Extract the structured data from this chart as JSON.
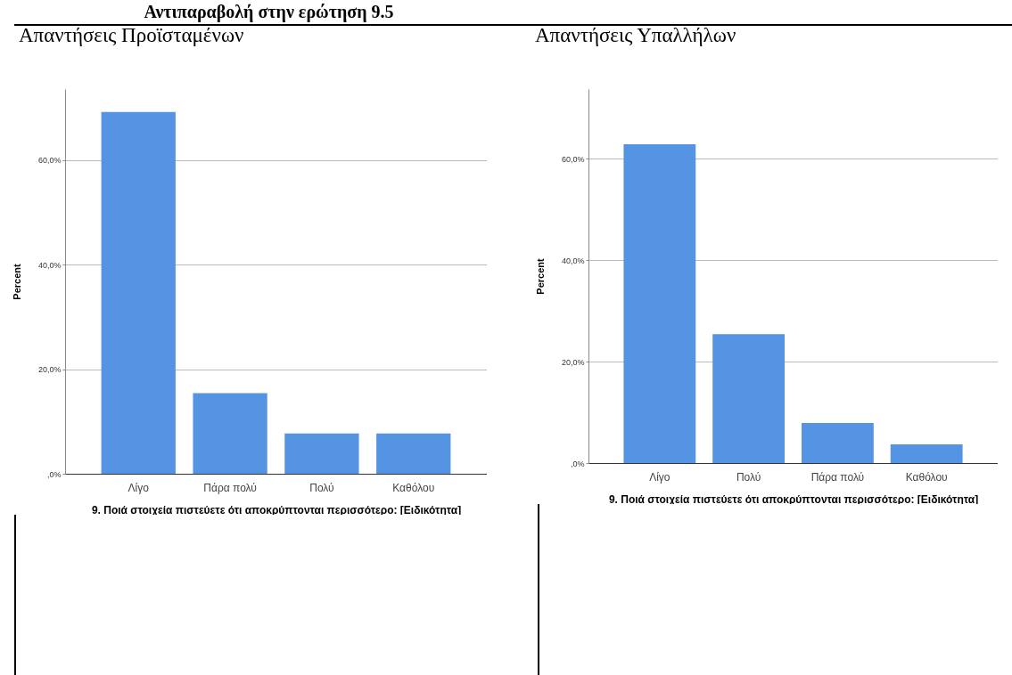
{
  "chart_data": [
    {
      "type": "bar",
      "title": "Απαντήσεις Προϊσταμένων",
      "annotations": [
        "Αντιπαραβολή στην ερώτηση 9.5"
      ],
      "xlabel": "9. Ποιά στοιχεία πιστεύετε ότι αποκρύπτονται περισσότερο: [Ειδικότητα]",
      "ylabel": "Percent",
      "categories": [
        "Λίγο",
        "Πάρα πολύ",
        "Πολύ",
        "Καθόλου"
      ],
      "values": [
        69.2,
        15.4,
        7.7,
        7.7
      ],
      "color": "#5594e2",
      "ylim": [
        0,
        73.6
      ],
      "yticks": [
        {
          "value": 0,
          "label": ",0%"
        },
        {
          "value": 20,
          "label": "20,0%"
        },
        {
          "value": 40,
          "label": "40,0%"
        },
        {
          "value": 60,
          "label": "60,0%"
        }
      ],
      "grid": "y"
    },
    {
      "type": "bar",
      "title": "Απαντήσεις Υπαλλήλων",
      "xlabel": "9. Ποιά στοιχεία πιστεύετε ότι αποκρύπτονται περισσότερο: [Ειδικότητα]",
      "ylabel": "Percent",
      "categories": [
        "Λίγο",
        "Πολύ",
        "Πάρα πολύ",
        "Καθόλου"
      ],
      "values": [
        62.8,
        25.4,
        7.9,
        3.7
      ],
      "color": "#5594e2",
      "ylim": [
        0,
        73.7
      ],
      "yticks": [
        {
          "value": 0,
          "label": ",0%"
        },
        {
          "value": 20,
          "label": "20,0%"
        },
        {
          "value": 40,
          "label": "40,0%"
        },
        {
          "value": 60,
          "label": "60,0%"
        }
      ],
      "grid": "y"
    }
  ]
}
